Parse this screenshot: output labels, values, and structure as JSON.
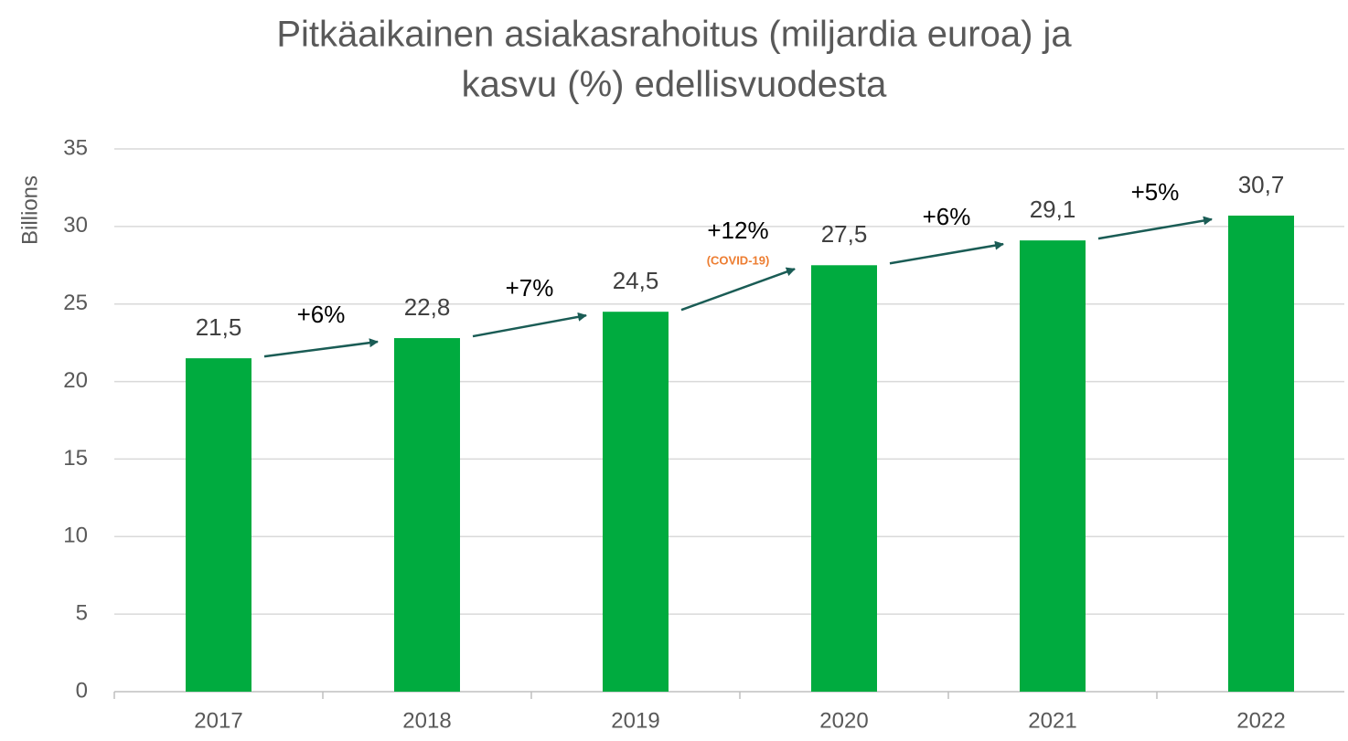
{
  "chart_data": {
    "type": "bar",
    "title": [
      "Pitkäaikainen asiakasrahoitus (miljardia euroa) ja",
      "kasvu (%) edellisvuodesta"
    ],
    "y_label": "Billions",
    "categories": [
      "2017",
      "2018",
      "2019",
      "2020",
      "2021",
      "2022"
    ],
    "values": [
      21.5,
      22.8,
      24.5,
      27.5,
      29.1,
      30.7
    ],
    "value_labels": [
      "21,5",
      "22,8",
      "24,5",
      "27,5",
      "29,1",
      "30,7"
    ],
    "color": "#00ab3f",
    "annotations": [
      "+6%",
      "+7%",
      "+12%",
      "+6%",
      "+5%"
    ],
    "annotation_note": "(COVID-19)",
    "annotation_note_color": "#ed7d31",
    "arrow_color": "#1a5c55",
    "ylim": [
      0,
      35
    ],
    "yticks": [
      0,
      5,
      10,
      15,
      20,
      25,
      30,
      35
    ],
    "grid": true
  }
}
